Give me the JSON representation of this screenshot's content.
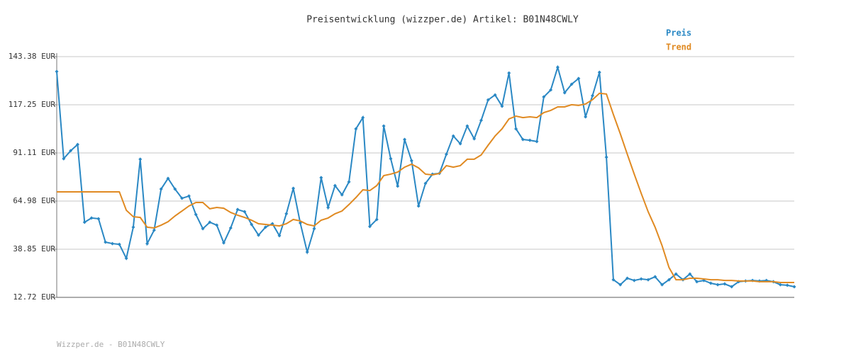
{
  "chart_data": {
    "type": "line",
    "title": "Preisentwicklung (wizzper.de) Artikel: B01N48CWLY",
    "footer": "Wizzper.de - B01N48CWLY",
    "ylim": [
      12.72,
      143.38
    ],
    "yticks": [
      {
        "value": 12.72,
        "label": "12.72 EUR"
      },
      {
        "value": 38.85,
        "label": "38.85 EUR"
      },
      {
        "value": 64.98,
        "label": "64.98 EUR"
      },
      {
        "value": 91.11,
        "label": "91.11 EUR"
      },
      {
        "value": 117.25,
        "label": "117.25 EUR"
      },
      {
        "value": 143.38,
        "label": "143.38 EUR"
      }
    ],
    "grid": true,
    "series": [
      {
        "name": "Preis",
        "color": "#2a88c4",
        "markers": true,
        "values": [
          135.3,
          88.0,
          92.3,
          95.7,
          53.5,
          55.8,
          55.4,
          42.7,
          41.9,
          41.5,
          33.9,
          50.8,
          87.7,
          41.9,
          49.2,
          71.5,
          77.3,
          71.5,
          66.5,
          67.7,
          57.7,
          50.0,
          53.5,
          51.9,
          42.3,
          50.4,
          60.4,
          59.2,
          52.3,
          46.5,
          50.8,
          52.7,
          46.2,
          58.1,
          71.9,
          53.1,
          37.3,
          50.0,
          77.7,
          61.5,
          73.4,
          68.4,
          75.4,
          104.2,
          110.3,
          51.2,
          55.0,
          105.7,
          88.0,
          73.1,
          98.4,
          86.9,
          62.3,
          74.6,
          79.6,
          80.0,
          90.4,
          100.3,
          96.1,
          105.7,
          98.8,
          108.8,
          119.9,
          122.6,
          116.5,
          134.5,
          104.2,
          98.4,
          98.0,
          97.3,
          121.5,
          125.3,
          137.6,
          123.8,
          128.4,
          131.5,
          110.7,
          122.2,
          134.9,
          88.8,
          22.3,
          19.6,
          23.1,
          21.9,
          22.7,
          22.3,
          23.9,
          19.6,
          22.3,
          25.4,
          22.3,
          25.4,
          21.2,
          21.9,
          20.4,
          19.6,
          20.0,
          18.5,
          21.2,
          21.6,
          21.9,
          21.6,
          21.9,
          21.2,
          19.6,
          19.3,
          18.5
        ]
      },
      {
        "name": "Trend",
        "color": "#e08a22",
        "markers": false,
        "values": [
          70.0,
          70.0,
          70.0,
          70.0,
          70.0,
          70.0,
          70.0,
          70.0,
          70.0,
          70.0,
          60.0,
          56.5,
          56.1,
          50.8,
          50.4,
          51.9,
          53.8,
          56.9,
          59.6,
          62.3,
          64.2,
          64.2,
          60.8,
          61.5,
          61.1,
          58.8,
          57.3,
          56.1,
          54.6,
          52.7,
          52.3,
          51.9,
          51.5,
          52.7,
          55.0,
          54.2,
          52.3,
          51.5,
          54.6,
          55.8,
          58.1,
          59.6,
          63.1,
          66.9,
          71.1,
          70.7,
          73.4,
          78.8,
          79.6,
          80.7,
          83.4,
          85.0,
          83.0,
          79.6,
          79.2,
          80.0,
          84.2,
          83.4,
          84.2,
          87.7,
          87.7,
          90.0,
          95.3,
          100.3,
          104.2,
          109.6,
          111.1,
          110.3,
          110.7,
          110.3,
          113.0,
          114.2,
          116.1,
          116.1,
          117.3,
          116.9,
          117.7,
          120.0,
          123.5,
          123.1,
          112.0,
          101.5,
          90.4,
          79.6,
          69.2,
          59.2,
          50.8,
          40.8,
          28.9,
          22.3,
          22.3,
          23.1,
          23.1,
          22.7,
          22.3,
          22.3,
          21.9,
          21.9,
          21.6,
          21.6,
          21.6,
          21.2,
          21.2,
          21.2,
          20.8,
          20.8,
          20.8
        ]
      }
    ]
  }
}
